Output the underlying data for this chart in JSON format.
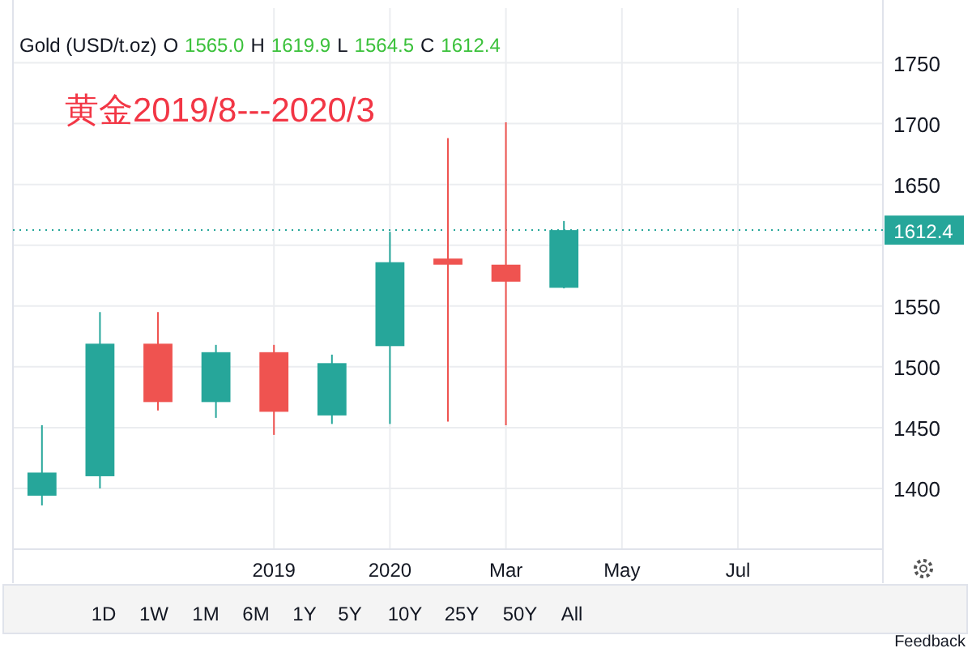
{
  "chart_data": {
    "type": "candlestick",
    "title": "Gold (USD/t.oz)",
    "subtitle": "黄金2019/8---2020/3",
    "categories": [
      null,
      null,
      null,
      null,
      "2019",
      null,
      "2020",
      null,
      "Mar",
      null,
      "May",
      null,
      "Jul",
      null,
      null
    ],
    "ohlc": [
      [
        1394,
        1452,
        1386,
        1413
      ],
      [
        1410,
        1545,
        1400,
        1519
      ],
      [
        1519,
        1545,
        1464,
        1471
      ],
      [
        1471,
        1518,
        1458,
        1512
      ],
      [
        1512,
        1518,
        1444,
        1463
      ],
      [
        1460,
        1510,
        1453,
        1503
      ],
      [
        1517,
        1611,
        1453,
        1586
      ],
      [
        1589,
        1688,
        1455,
        1584
      ],
      [
        1584,
        1701,
        1452,
        1570
      ],
      [
        1565.0,
        1619.9,
        1564.5,
        1612.4
      ],
      null,
      null,
      null,
      null,
      null
    ],
    "colors": [
      "#26a69a",
      "#26a69a",
      "#ef5350",
      "#26a69a",
      "#ef5350",
      "#26a69a",
      "#26a69a",
      "#ef5350",
      "#ef5350",
      "#26a69a",
      null,
      null,
      null,
      null,
      null
    ],
    "ylim": [
      1350,
      1795
    ],
    "yticks": [
      1400,
      1450,
      1500,
      1550,
      {
        "value": 1600,
        "label": null
      },
      1650,
      1700,
      1750
    ],
    "grid": true,
    "ref_lines": [
      {
        "axis": "y",
        "value": 1612.4,
        "label": "1612.4",
        "color": "#26a69a",
        "line_style": "dotted"
      }
    ],
    "annotations": [
      "O",
      "1565.0",
      "H",
      "1619.9",
      "L",
      "1564.5",
      "C",
      "1612.4",
      "1D",
      "1W",
      "1M",
      "6M",
      "1Y",
      "5Y",
      "10Y",
      "25Y",
      "50Y",
      "All",
      "Feedback"
    ]
  }
}
